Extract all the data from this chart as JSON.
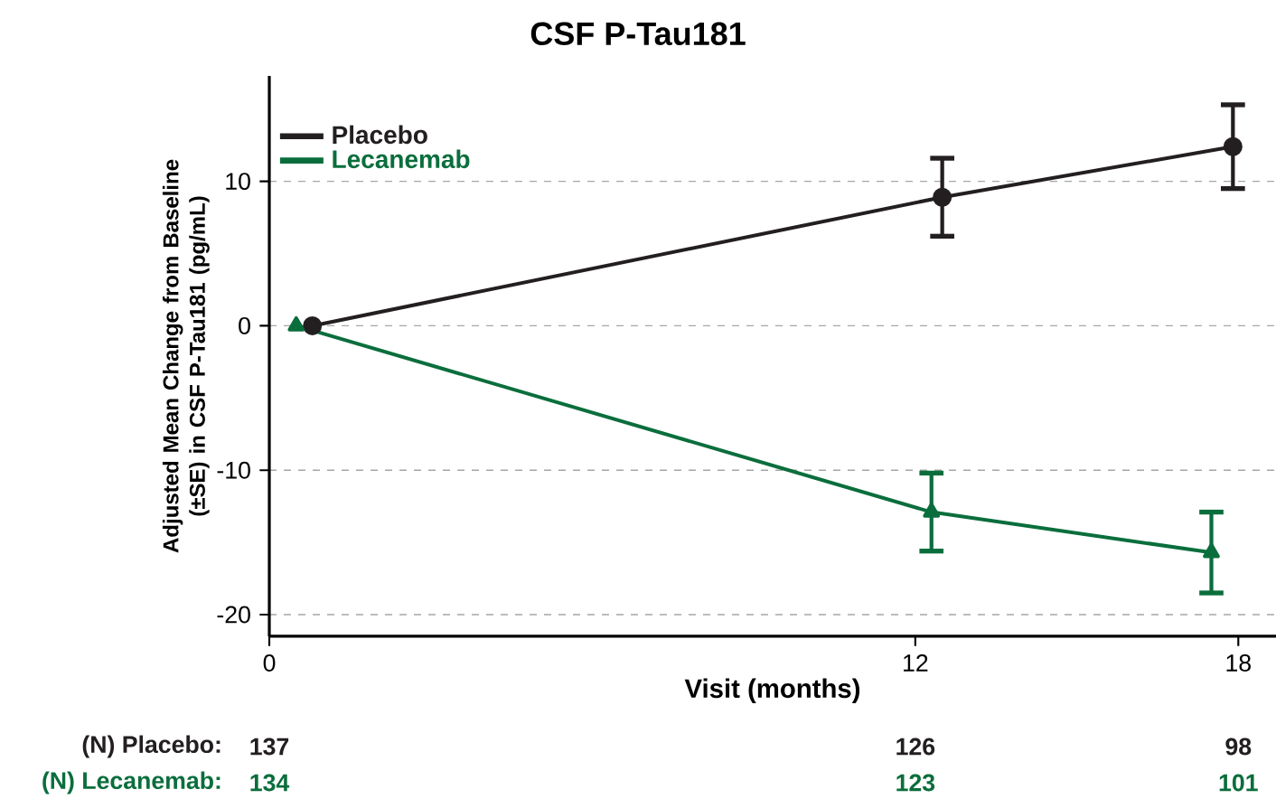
{
  "chart_data": {
    "type": "line",
    "title": "CSF P-Tau181",
    "xlabel": "Visit (months)",
    "ylabel": "Adjusted Mean Change from Baseline (±SE) in CSF P-Tau181 (pg/mL)",
    "xlim": [
      0,
      18.7
    ],
    "xticks": [
      0,
      12,
      18
    ],
    "ylim": [
      -21.5,
      17.3
    ],
    "yticks": [
      -20,
      -10,
      0,
      10
    ],
    "grid": "y",
    "legend": "top left",
    "line_style": "solid",
    "series": [
      {
        "name": "Placebo",
        "color": "#231f20",
        "marker": "circle",
        "x": [
          0.8,
          12.5,
          17.9
        ],
        "values": [
          0,
          8.9,
          12.4
        ],
        "errors": [
          null,
          2.7,
          2.9
        ]
      },
      {
        "name": "Lecanemab",
        "color": "#0a6e3c",
        "marker": "triangle",
        "x": [
          0.5,
          12.3,
          17.5
        ],
        "values": [
          0,
          -12.9,
          -15.7
        ],
        "errors": [
          null,
          2.7,
          2.8
        ]
      }
    ],
    "annotations": [
      "(N) Placebo:",
      "137",
      "126",
      "98",
      "(N) Lecanemab:",
      "134",
      "123",
      "101"
    ]
  }
}
